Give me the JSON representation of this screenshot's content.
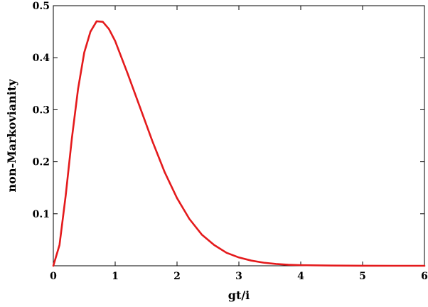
{
  "chart_data": {
    "type": "line",
    "title": "",
    "xlabel": "gt/i",
    "ylabel": "non-Markovianity",
    "xlim": [
      0,
      6
    ],
    "ylim": [
      0,
      0.5
    ],
    "x_ticks": [
      0,
      1,
      2,
      3,
      4,
      5,
      6
    ],
    "x_tick_labels": [
      "0",
      "1",
      "2",
      "3",
      "4",
      "5",
      "6"
    ],
    "y_ticks": [
      0.1,
      0.2,
      0.3,
      0.4,
      0.5
    ],
    "y_tick_labels": [
      "0.1",
      "0.2",
      "0.3",
      "0.4",
      "0.5"
    ],
    "grid": false,
    "legend": "none",
    "series": [
      {
        "color": "#e41a1c",
        "x": [
          0,
          0.1,
          0.2,
          0.3,
          0.4,
          0.5,
          0.6,
          0.7,
          0.8,
          0.9,
          1.0,
          1.2,
          1.4,
          1.6,
          1.8,
          2.0,
          2.2,
          2.4,
          2.6,
          2.8,
          3.0,
          3.2,
          3.4,
          3.6,
          3.8,
          4.0,
          4.5,
          5.0,
          5.5,
          6.0
        ],
        "y": [
          0.0,
          0.04,
          0.135,
          0.245,
          0.34,
          0.41,
          0.45,
          0.47,
          0.469,
          0.455,
          0.432,
          0.37,
          0.305,
          0.24,
          0.18,
          0.13,
          0.09,
          0.06,
          0.04,
          0.025,
          0.016,
          0.01,
          0.006,
          0.0035,
          0.002,
          0.0012,
          0.0004,
          0.0001,
          0.0,
          0.0
        ]
      }
    ]
  }
}
